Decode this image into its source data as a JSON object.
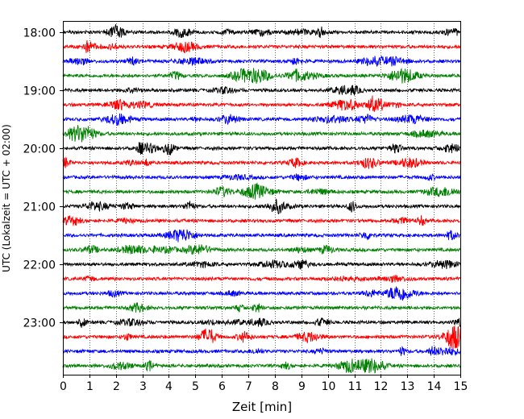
{
  "chart_data": {
    "type": "line",
    "xlabel": "Zeit  [min]",
    "ylabel": "UTC (Lokalzeit = UTC + 02:00)",
    "xlim": [
      0,
      15
    ],
    "x_ticks": [
      0,
      1,
      2,
      3,
      4,
      5,
      6,
      7,
      8,
      9,
      10,
      11,
      12,
      13,
      14,
      15
    ],
    "y_ticks": [
      "18:00",
      "19:00",
      "20:00",
      "21:00",
      "22:00",
      "23:00"
    ],
    "grid": "vertical dotted",
    "trace_colors": [
      "#000000",
      "#ff0000",
      "#0000ff",
      "#008000"
    ],
    "series": [
      {
        "start": "18:00",
        "color": "#000000"
      },
      {
        "start": "18:15",
        "color": "#ff0000"
      },
      {
        "start": "18:30",
        "color": "#0000ff"
      },
      {
        "start": "18:45",
        "color": "#008000"
      },
      {
        "start": "19:00",
        "color": "#000000"
      },
      {
        "start": "19:15",
        "color": "#ff0000"
      },
      {
        "start": "19:30",
        "color": "#0000ff"
      },
      {
        "start": "19:45",
        "color": "#008000"
      },
      {
        "start": "20:00",
        "color": "#000000"
      },
      {
        "start": "20:15",
        "color": "#ff0000"
      },
      {
        "start": "20:30",
        "color": "#0000ff"
      },
      {
        "start": "20:45",
        "color": "#008000"
      },
      {
        "start": "21:00",
        "color": "#000000"
      },
      {
        "start": "21:15",
        "color": "#ff0000"
      },
      {
        "start": "21:30",
        "color": "#0000ff"
      },
      {
        "start": "21:45",
        "color": "#008000"
      },
      {
        "start": "22:00",
        "color": "#000000"
      },
      {
        "start": "22:15",
        "color": "#ff0000"
      },
      {
        "start": "22:30",
        "color": "#0000ff"
      },
      {
        "start": "22:45",
        "color": "#008000"
      },
      {
        "start": "23:00",
        "color": "#000000"
      },
      {
        "start": "23:15",
        "color": "#ff0000"
      },
      {
        "start": "23:30",
        "color": "#0000ff"
      },
      {
        "start": "23:45",
        "color": "#008000"
      }
    ]
  }
}
